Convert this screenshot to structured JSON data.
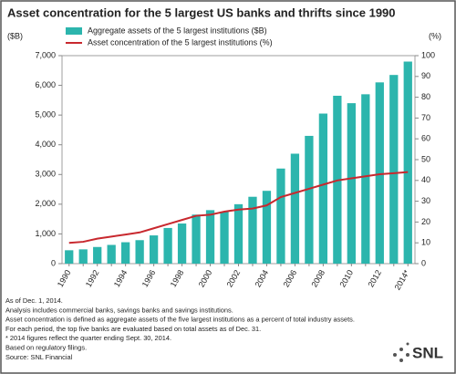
{
  "chart_data": {
    "type": "bar",
    "title": "Asset concentration for the 5 largest US banks and thrifts since 1990",
    "ylabel": "($B)",
    "y2label": "(%)",
    "categories": [
      "1990",
      null,
      "1992",
      null,
      "1994",
      null,
      "1996",
      null,
      "1998",
      null,
      "2000",
      null,
      "2002",
      null,
      "2004",
      null,
      "2006",
      null,
      "2008",
      null,
      "2010",
      null,
      "2012",
      null,
      "2014*"
    ],
    "series": [
      {
        "name": "Aggregate assets of the 5 largest institutions ($B)",
        "type": "bar",
        "color": "#2cb5ad",
        "values": [
          450,
          480,
          560,
          630,
          720,
          790,
          950,
          1200,
          1350,
          1650,
          1800,
          1750,
          2000,
          2250,
          2450,
          3200,
          3700,
          4300,
          5050,
          5650,
          5400,
          5700,
          6100,
          6350,
          6800
        ]
      },
      {
        "name": "Asset concentration of the 5 largest institutions (%)",
        "type": "line",
        "color": "#c8282e",
        "axis": "y2",
        "values": [
          10,
          10.5,
          12,
          13,
          14,
          15,
          17,
          19,
          21,
          23,
          23.5,
          25,
          26,
          26.5,
          28,
          32,
          34,
          36,
          38,
          40,
          41,
          42,
          43,
          43.5,
          44
        ]
      }
    ],
    "ylim": [
      0,
      7000
    ],
    "yticks": [
      0,
      {
        "value": 1000,
        "label": "1,000"
      },
      {
        "value": 2000,
        "label": "2,000"
      },
      {
        "value": 3000,
        "label": "3,000"
      },
      {
        "value": 4000,
        "label": "4,000"
      },
      {
        "value": 5000,
        "label": "5,000"
      },
      {
        "value": 6000,
        "label": "6,000"
      },
      {
        "value": 7000,
        "label": "7,000"
      }
    ],
    "y2lim": [
      0,
      100
    ],
    "y2ticks": [
      0,
      10,
      20,
      30,
      40,
      50,
      60,
      70,
      80,
      90,
      100
    ],
    "legend": "upper left",
    "notes": [
      "As of Dec. 1, 2014.",
      "Analysis includes commercial banks, savings banks and savings institutions.",
      "Asset concentration is defined as aggregate assets of the five largest institutions as a percent of total industry assets.",
      "For each period, the top five banks are evaluated based on total assets as of Dec. 31.",
      "* 2014 figures reflect the quarter ending Sept. 30, 2014.",
      "Based on regulatory filings.",
      "Source: SNL Financial"
    ],
    "logo": "SNL"
  }
}
